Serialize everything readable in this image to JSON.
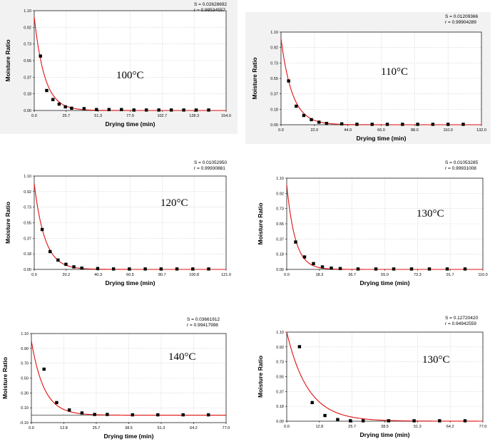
{
  "chart_data": [
    {
      "type": "scatter",
      "temperature_label": "100°C",
      "stats": [
        "S = 0.02628692",
        "r = 0.99534557"
      ],
      "xlabel": "Drying time (min)",
      "ylabel": "Moisture Ratio",
      "xticks": [
        "0.0",
        "25.7",
        "51.3",
        "77.0",
        "102.7",
        "128.3",
        "154.0"
      ],
      "yticks": [
        "0.00",
        "0.18",
        "0.37",
        "0.55",
        "0.73",
        "0.92",
        "1.10"
      ],
      "xlim": [
        0,
        154.0
      ],
      "ylim": [
        0,
        1.1
      ],
      "grid": true,
      "series": [
        {
          "points": [
            [
              5,
              0.6
            ],
            [
              10,
              0.22
            ],
            [
              15,
              0.12
            ],
            [
              20,
              0.07
            ],
            [
              25,
              0.04
            ],
            [
              30,
              0.025
            ],
            [
              40,
              0.02
            ],
            [
              50,
              0.01
            ],
            [
              60,
              0.01
            ],
            [
              70,
              0.01
            ],
            [
              80,
              0.005
            ],
            [
              90,
              0.005
            ],
            [
              100,
              0.005
            ],
            [
              110,
              0.005
            ],
            [
              120,
              0.005
            ],
            [
              130,
              0.005
            ],
            [
              140,
              0.005
            ]
          ]
        },
        {
          "model": "exp",
          "a": 1.03,
          "k": 0.12
        }
      ]
    },
    {
      "type": "scatter",
      "temperature_label": "110°C",
      "stats": [
        "S = 0.01209366",
        "r = 0.99904289"
      ],
      "xlabel": "Drying time (min)",
      "ylabel": "Moisture Ratio",
      "xticks": [
        "0.0",
        "22.0",
        "44.0",
        "66.0",
        "88.0",
        "110.0",
        "132.0"
      ],
      "yticks": [
        "0.00",
        "0.18",
        "0.37",
        "0.55",
        "0.73",
        "0.92",
        "1.10"
      ],
      "xlim": [
        0,
        132.0
      ],
      "ylim": [
        0,
        1.1
      ],
      "grid": true,
      "series": [
        {
          "points": [
            [
              5,
              0.52
            ],
            [
              10,
              0.22
            ],
            [
              15,
              0.11
            ],
            [
              20,
              0.06
            ],
            [
              25,
              0.03
            ],
            [
              30,
              0.015
            ],
            [
              40,
              0.01
            ],
            [
              50,
              0.005
            ],
            [
              60,
              0.005
            ],
            [
              70,
              0.005
            ],
            [
              80,
              0.005
            ],
            [
              90,
              0.005
            ],
            [
              100,
              0.005
            ],
            [
              110,
              0.005
            ],
            [
              120,
              0.005
            ]
          ]
        },
        {
          "model": "exp",
          "a": 1.02,
          "k": 0.135
        }
      ]
    },
    {
      "type": "scatter",
      "temperature_label": "120°C",
      "stats": [
        "S = 0.01052950",
        "r = 0.99930881"
      ],
      "xlabel": "Drying time (min)",
      "ylabel": "Moisture Ratio",
      "xticks": [
        "0.0",
        "20.2",
        "40.3",
        "60.5",
        "80.7",
        "100.8",
        "121.0"
      ],
      "yticks": [
        "0.00",
        "0.18",
        "0.37",
        "0.55",
        "0.73",
        "0.92",
        "1.10"
      ],
      "xlim": [
        0,
        121.0
      ],
      "ylim": [
        0,
        1.1
      ],
      "grid": true,
      "series": [
        {
          "points": [
            [
              5,
              0.47
            ],
            [
              10,
              0.21
            ],
            [
              15,
              0.11
            ],
            [
              20,
              0.06
            ],
            [
              25,
              0.03
            ],
            [
              30,
              0.015
            ],
            [
              40,
              0.01
            ],
            [
              50,
              0.005
            ],
            [
              60,
              0.005
            ],
            [
              70,
              0.005
            ],
            [
              80,
              0.005
            ],
            [
              90,
              0.005
            ],
            [
              100,
              0.005
            ],
            [
              110,
              0.005
            ]
          ]
        },
        {
          "model": "exp",
          "a": 1.01,
          "k": 0.15
        }
      ]
    },
    {
      "type": "scatter",
      "temperature_label": "130°C",
      "stats": [
        "S = 0.01053285",
        "r = 0.99931008"
      ],
      "xlabel": "Drying time (min)",
      "ylabel": "Moisture Ratio",
      "xticks": [
        "0.0",
        "18.3",
        "36.7",
        "55.0",
        "73.3",
        "91.7",
        "110.0"
      ],
      "yticks": [
        "0.00",
        "0.18",
        "0.37",
        "0.55",
        "0.73",
        "0.92",
        "1.10"
      ],
      "xlim": [
        0,
        110.0
      ],
      "ylim": [
        0,
        1.1
      ],
      "grid": true,
      "series": [
        {
          "points": [
            [
              5,
              0.33
            ],
            [
              10,
              0.15
            ],
            [
              15,
              0.07
            ],
            [
              20,
              0.03
            ],
            [
              25,
              0.015
            ],
            [
              30,
              0.01
            ],
            [
              40,
              0.005
            ],
            [
              50,
              0.005
            ],
            [
              60,
              0.005
            ],
            [
              70,
              0.005
            ],
            [
              80,
              0.005
            ],
            [
              90,
              0.005
            ],
            [
              100,
              0.005
            ]
          ]
        },
        {
          "model": "exp",
          "a": 1.02,
          "k": 0.21
        }
      ]
    },
    {
      "type": "scatter",
      "temperature_label": "140°C",
      "stats": [
        "S = 0.03661912",
        "r = 0.99417998"
      ],
      "xlabel": "Drying time (min)",
      "ylabel": "Moisture Ratio",
      "xticks": [
        "0.0",
        "12.8",
        "25.7",
        "38.5",
        "51.3",
        "64.2",
        "77.0"
      ],
      "yticks": [
        "-0.10",
        "0.10",
        "0.30",
        "0.50",
        "0.70",
        "0.90",
        "1.10"
      ],
      "xlim": [
        0,
        77.0
      ],
      "ylim": [
        -0.1,
        1.1
      ],
      "grid": true,
      "series": [
        {
          "points": [
            [
              5,
              0.62
            ],
            [
              10,
              0.17
            ],
            [
              15,
              0.07
            ],
            [
              20,
              0.03
            ],
            [
              25,
              0.01
            ],
            [
              30,
              0.01
            ],
            [
              40,
              0.005
            ],
            [
              50,
              0.005
            ],
            [
              60,
              0.005
            ],
            [
              70,
              0.005
            ]
          ]
        },
        {
          "model": "exp",
          "a": 1.0,
          "k": 0.2
        }
      ]
    },
    {
      "type": "scatter",
      "temperature_label": "130°C",
      "stats": [
        "S = 0.12720420",
        "r = 0.94942559"
      ],
      "xlabel": "Drying time (min)",
      "ylabel": "Moisture Ratio",
      "xticks": [
        "0.0",
        "12.8",
        "25.7",
        "38.5",
        "51.3",
        "64.2",
        "77.0"
      ],
      "yticks": [
        "0.00",
        "0.18",
        "0.37",
        "0.55",
        "0.73",
        "0.92",
        "1.10"
      ],
      "xlim": [
        0,
        77.0
      ],
      "ylim": [
        0,
        1.1
      ],
      "grid": true,
      "series": [
        {
          "points": [
            [
              5,
              0.92
            ],
            [
              10,
              0.23
            ],
            [
              15,
              0.07
            ],
            [
              20,
              0.02
            ],
            [
              25,
              0.005
            ],
            [
              30,
              0.005
            ],
            [
              40,
              0.005
            ],
            [
              50,
              0.005
            ],
            [
              60,
              0.005
            ],
            [
              70,
              0.005
            ]
          ]
        },
        {
          "model": "exp",
          "a": 1.1,
          "k": 0.12
        }
      ]
    }
  ],
  "colors": {
    "fit_line": "#e01010",
    "marker": "#000000",
    "panel_bg": "#f2f2f2",
    "grid": "#cfcfcf"
  }
}
